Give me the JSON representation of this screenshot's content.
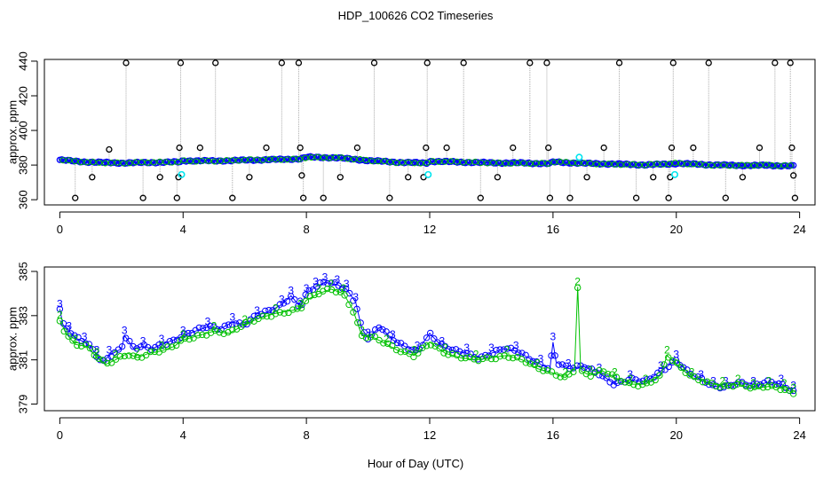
{
  "title": "HDP_100626  CO2 Timeseries",
  "xlabel": "Hour of Day (UTC)",
  "colors": {
    "primary": "#0000ff",
    "secondary": "#00c000",
    "cyan": "#00e5ee",
    "outlier": "#000000",
    "stem": "#aaaaaa",
    "frame": "#000000"
  },
  "chart_data": [
    {
      "type": "scatter",
      "title": "",
      "xlabel": "",
      "ylabel": "approx. ppm",
      "xlim": [
        -0.5,
        24.5
      ],
      "ylim": [
        357,
        441
      ],
      "xticks": [
        0,
        4,
        8,
        12,
        16,
        20,
        24
      ],
      "yticks": [
        360,
        380,
        400,
        420,
        440
      ],
      "grid": false,
      "baseline": [
        [
          0,
          383
        ],
        [
          0.5,
          382.2
        ],
        [
          1,
          381.7
        ],
        [
          2,
          381.2
        ],
        [
          3,
          381.5
        ],
        [
          3.9,
          381.8
        ],
        [
          4.0,
          382.5
        ],
        [
          5,
          382.4
        ],
        [
          6,
          382.8
        ],
        [
          7,
          383.2
        ],
        [
          7.8,
          383.6
        ],
        [
          8,
          384.6
        ],
        [
          9,
          384.2
        ],
        [
          10,
          382.6
        ],
        [
          11,
          381.6
        ],
        [
          11.9,
          381.2
        ],
        [
          12,
          382.2
        ],
        [
          13,
          381.7
        ],
        [
          14,
          381.3
        ],
        [
          15,
          381.2
        ],
        [
          15.9,
          380.8
        ],
        [
          16,
          381.8
        ],
        [
          17,
          381
        ],
        [
          18,
          380.6
        ],
        [
          19,
          380.1
        ],
        [
          19.9,
          380.7
        ],
        [
          20,
          381
        ],
        [
          21,
          380.2
        ],
        [
          22,
          379.8
        ],
        [
          23,
          379.8
        ],
        [
          23.8,
          379.5
        ]
      ],
      "outliers": [
        [
          0.5,
          361
        ],
        [
          1.05,
          373
        ],
        [
          1.6,
          389
        ],
        [
          2.15,
          439
        ],
        [
          2.7,
          361
        ],
        [
          3.25,
          373
        ],
        [
          3.8,
          361
        ],
        [
          3.85,
          373
        ],
        [
          3.88,
          390
        ],
        [
          3.92,
          439
        ],
        [
          4.55,
          390
        ],
        [
          5.05,
          439
        ],
        [
          5.6,
          361
        ],
        [
          6.15,
          373
        ],
        [
          6.7,
          390
        ],
        [
          7.2,
          439
        ],
        [
          7.75,
          439
        ],
        [
          7.8,
          390
        ],
        [
          7.85,
          374
        ],
        [
          7.9,
          361
        ],
        [
          8.55,
          361
        ],
        [
          9.1,
          373
        ],
        [
          9.65,
          390
        ],
        [
          10.2,
          439
        ],
        [
          10.7,
          361
        ],
        [
          11.3,
          373
        ],
        [
          11.8,
          373
        ],
        [
          11.88,
          390
        ],
        [
          11.92,
          439
        ],
        [
          12.55,
          390
        ],
        [
          13.1,
          439
        ],
        [
          13.65,
          361
        ],
        [
          14.2,
          373
        ],
        [
          14.7,
          390
        ],
        [
          15.25,
          439
        ],
        [
          15.8,
          439
        ],
        [
          15.85,
          390
        ],
        [
          15.9,
          361
        ],
        [
          16.55,
          361
        ],
        [
          17.1,
          373
        ],
        [
          17.65,
          390
        ],
        [
          18.15,
          439
        ],
        [
          18.7,
          361
        ],
        [
          19.25,
          373
        ],
        [
          19.75,
          361
        ],
        [
          19.8,
          373
        ],
        [
          19.85,
          390
        ],
        [
          19.9,
          439
        ],
        [
          20.55,
          390
        ],
        [
          21.05,
          439
        ],
        [
          21.6,
          361
        ],
        [
          22.15,
          373
        ],
        [
          22.7,
          390
        ],
        [
          23.2,
          439
        ],
        [
          23.7,
          439
        ],
        [
          23.75,
          390
        ],
        [
          23.8,
          374
        ],
        [
          23.85,
          361
        ]
      ],
      "cyan_points": [
        [
          3.95,
          374.5
        ],
        [
          11.95,
          374.5
        ],
        [
          16.85,
          384.5
        ],
        [
          19.95,
          374.5
        ]
      ]
    },
    {
      "type": "line",
      "title": "",
      "xlabel": "",
      "ylabel": "approx. ppm",
      "xlim": [
        -0.5,
        24.5
      ],
      "ylim": [
        378.7,
        385.2
      ],
      "xticks": [
        0,
        4,
        8,
        12,
        16,
        20,
        24
      ],
      "yticks": [
        379,
        381,
        383,
        385
      ],
      "grid": false,
      "series": [
        {
          "marker": "3",
          "values": [
            [
              0,
              383.3
            ],
            [
              0.1,
              382.6
            ],
            [
              0.3,
              382.3
            ],
            [
              0.5,
              382.0
            ],
            [
              0.8,
              381.8
            ],
            [
              1.0,
              381.6
            ],
            [
              1.2,
              381.2
            ],
            [
              1.4,
              380.9
            ],
            [
              1.6,
              381.2
            ],
            [
              2.0,
              381.5
            ],
            [
              2.1,
              382.1
            ],
            [
              2.4,
              381.5
            ],
            [
              2.7,
              381.6
            ],
            [
              3.0,
              381.5
            ],
            [
              3.3,
              381.7
            ],
            [
              3.7,
              381.9
            ],
            [
              4.0,
              382.1
            ],
            [
              4.4,
              382.3
            ],
            [
              4.8,
              382.5
            ],
            [
              5.2,
              382.4
            ],
            [
              5.6,
              382.7
            ],
            [
              6.0,
              382.6
            ],
            [
              6.4,
              383.0
            ],
            [
              6.8,
              383.2
            ],
            [
              7.2,
              383.5
            ],
            [
              7.5,
              383.9
            ],
            [
              7.8,
              383.4
            ],
            [
              8.0,
              384.0
            ],
            [
              8.3,
              384.3
            ],
            [
              8.6,
              384.5
            ],
            [
              9.0,
              384.4
            ],
            [
              9.3,
              384.2
            ],
            [
              9.6,
              383.6
            ],
            [
              9.8,
              382.4
            ],
            [
              10.0,
              382.0
            ],
            [
              10.4,
              382.5
            ],
            [
              10.8,
              381.9
            ],
            [
              11.2,
              381.6
            ],
            [
              11.6,
              381.4
            ],
            [
              12.0,
              382.2
            ],
            [
              12.4,
              381.6
            ],
            [
              12.8,
              381.4
            ],
            [
              13.2,
              381.3
            ],
            [
              13.6,
              381.1
            ],
            [
              14.0,
              381.3
            ],
            [
              14.4,
              381.5
            ],
            [
              14.8,
              381.4
            ],
            [
              15.2,
              381.1
            ],
            [
              15.6,
              380.8
            ],
            [
              15.9,
              380.6
            ],
            [
              16.0,
              381.8
            ],
            [
              16.1,
              380.9
            ],
            [
              16.5,
              380.6
            ],
            [
              17.0,
              380.7
            ],
            [
              17.5,
              380.4
            ],
            [
              18.0,
              379.9
            ],
            [
              18.5,
              380.1
            ],
            [
              19.0,
              380.0
            ],
            [
              19.5,
              380.5
            ],
            [
              19.8,
              380.8
            ],
            [
              20.0,
              381.0
            ],
            [
              20.4,
              380.4
            ],
            [
              20.8,
              380.1
            ],
            [
              21.2,
              379.8
            ],
            [
              21.6,
              379.8
            ],
            [
              22.0,
              380.0
            ],
            [
              22.5,
              379.8
            ],
            [
              23.0,
              380.0
            ],
            [
              23.4,
              379.9
            ],
            [
              23.8,
              379.6
            ]
          ]
        },
        {
          "marker": "2",
          "values": [
            [
              0,
              382.8
            ],
            [
              0.2,
              382.2
            ],
            [
              0.5,
              381.7
            ],
            [
              0.9,
              381.6
            ],
            [
              1.2,
              381.1
            ],
            [
              1.5,
              380.8
            ],
            [
              1.8,
              381.0
            ],
            [
              2.2,
              381.3
            ],
            [
              2.5,
              381.1
            ],
            [
              2.9,
              381.3
            ],
            [
              3.3,
              381.4
            ],
            [
              3.7,
              381.6
            ],
            [
              4.0,
              381.9
            ],
            [
              4.5,
              382.1
            ],
            [
              5.0,
              382.3
            ],
            [
              5.5,
              382.2
            ],
            [
              6.0,
              382.6
            ],
            [
              6.5,
              382.9
            ],
            [
              7.0,
              383.1
            ],
            [
              7.4,
              383.2
            ],
            [
              7.8,
              383.3
            ],
            [
              8.0,
              383.7
            ],
            [
              8.4,
              384.0
            ],
            [
              8.8,
              384.2
            ],
            [
              9.2,
              384.0
            ],
            [
              9.5,
              383.3
            ],
            [
              9.8,
              382.1
            ],
            [
              10.2,
              382.0
            ],
            [
              10.6,
              381.7
            ],
            [
              11.0,
              381.4
            ],
            [
              11.5,
              381.2
            ],
            [
              12.0,
              381.8
            ],
            [
              12.5,
              381.3
            ],
            [
              13.0,
              381.1
            ],
            [
              13.5,
              381.0
            ],
            [
              14.0,
              381.1
            ],
            [
              14.5,
              381.2
            ],
            [
              15.0,
              381.0
            ],
            [
              15.5,
              380.6
            ],
            [
              16.0,
              380.4
            ],
            [
              16.4,
              380.2
            ],
            [
              16.7,
              380.6
            ],
            [
              16.8,
              384.3
            ],
            [
              16.9,
              380.5
            ],
            [
              17.2,
              380.3
            ],
            [
              17.6,
              380.5
            ],
            [
              18.0,
              380.2
            ],
            [
              18.5,
              379.9
            ],
            [
              19.0,
              379.9
            ],
            [
              19.5,
              380.3
            ],
            [
              19.7,
              381.2
            ],
            [
              20.0,
              380.8
            ],
            [
              20.5,
              380.2
            ],
            [
              21.0,
              380.0
            ],
            [
              21.5,
              379.8
            ],
            [
              22.0,
              379.9
            ],
            [
              22.5,
              379.7
            ],
            [
              23.0,
              379.8
            ],
            [
              23.5,
              379.7
            ],
            [
              23.8,
              379.5
            ]
          ]
        }
      ]
    }
  ]
}
